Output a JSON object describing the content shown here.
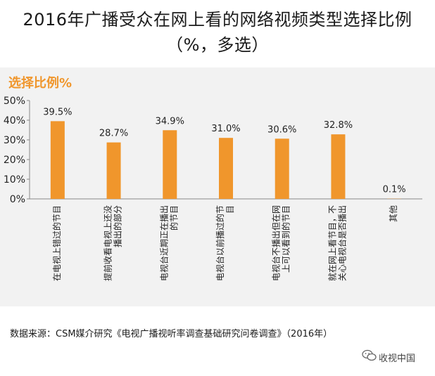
{
  "header": {
    "title_line1": "2016年广播受众在网上看的网络视频类型选择比例",
    "title_line2": "（%，多选）"
  },
  "panel": {
    "label": "选择比例%"
  },
  "source": {
    "text": "数据来源：CSM媒介研究《电视广播视听率调查基础研究问卷调查》（2016年）"
  },
  "watermark": {
    "text": "收视中国",
    "icon": "wechat-icon"
  },
  "chart_data": {
    "type": "bar",
    "categories": [
      "在电视上错过的节目",
      "提前收看电视上还没播出的部分",
      "电视台近期正在播出的节目",
      "电视台以前播过的节目",
      "电视台不播出但在网上可以看到的节目",
      "就在网上看节目，不关心电视台是否播出",
      "其他"
    ],
    "values": [
      39.5,
      28.7,
      34.9,
      31.0,
      30.6,
      32.8,
      0.1
    ],
    "value_labels": [
      "39.5%",
      "28.7%",
      "34.9%",
      "31.0%",
      "30.6%",
      "32.8%",
      "0.1%"
    ],
    "yticks": [
      "0%",
      "10%",
      "20%",
      "30%",
      "40%",
      "50%"
    ],
    "ylim": [
      0,
      50
    ],
    "bar_color": "#f0962c",
    "grid": false,
    "legend": "none"
  }
}
